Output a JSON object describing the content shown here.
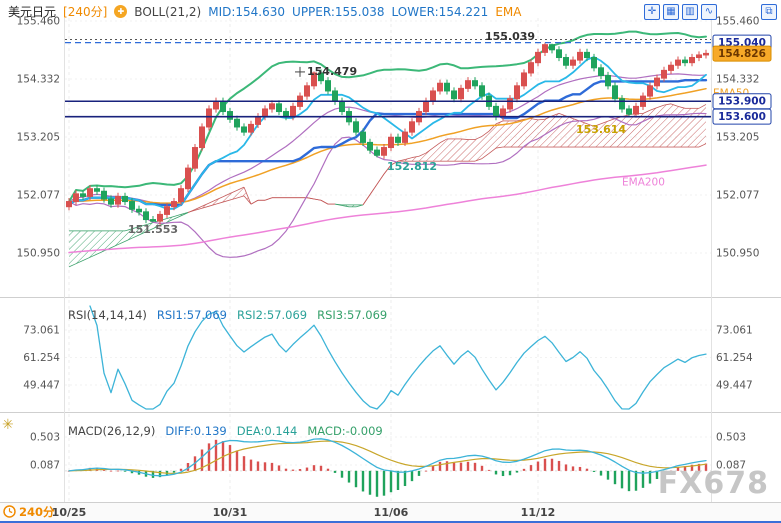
{
  "header": {
    "symbol": "美元日元",
    "timeframe": "[240分]",
    "indicator": "BOLL(21,2)",
    "mid": "MID:154.630",
    "upper": "UPPER:155.038",
    "lower": "LOWER:154.221",
    "ema_label": "EMA"
  },
  "icons": {
    "marker_glyph": "✚",
    "gear_glyph": "✳"
  },
  "toolbar": {
    "icons": [
      {
        "name": "crosshair-icon",
        "glyph": "✛"
      },
      {
        "name": "grid-view-icon",
        "glyph": "▦"
      },
      {
        "name": "candlestick-view-icon",
        "glyph": "▥"
      },
      {
        "name": "line-chart-icon",
        "glyph": "∿"
      }
    ],
    "corner": {
      "name": "expand-icon",
      "glyph": "⧉"
    }
  },
  "rsi": {
    "title": "RSI(14,14,14)",
    "rsi1": "RSI1:57.069",
    "rsi2": "RSI2:57.069",
    "rsi3": "RSI3:57.069"
  },
  "macd": {
    "title": "MACD(26,12,9)",
    "diff_label": "DIFF:0.139",
    "dea_label": "DEA:0.144",
    "macd_label": "MACD:-0.009"
  },
  "footer": {
    "timeframe": "240分"
  },
  "watermark": "FX678",
  "colors": {
    "up": "#d9504f",
    "down": "#1fa35c",
    "boll_upper": "#3cb878",
    "boll_mid": "#b06fc0",
    "boll_lower": "#b06fc0",
    "ema50": "#f0a125",
    "ema200": "#ee82d9",
    "kijun": "#2e6bd8",
    "tenkan": "#29b8e8",
    "cloud_red": "#c45a5a",
    "cloud_green": "#3aa06a",
    "rsi": "#3db4d8",
    "macd_diff": "#3db4d8",
    "macd_dea": "#c8a62a",
    "navy": "#18227c",
    "axis_text": "#555555"
  },
  "chart_data": [
    {
      "type": "candlestick",
      "panel": "price",
      "symbol": "美元日元",
      "timeframe": "240分",
      "ylim": [
        150.4,
        155.6
      ],
      "y_ticks": [
        155.46,
        154.332,
        153.205,
        152.077,
        150.95
      ],
      "x_ticks": [
        {
          "bar": 0,
          "label": "10/25"
        },
        {
          "bar": 23,
          "label": "10/31"
        },
        {
          "bar": 46,
          "label": "11/06"
        },
        {
          "bar": 67,
          "label": "11/12"
        }
      ],
      "candles": [
        [
          151.85,
          152.02,
          151.78,
          151.95
        ],
        [
          151.95,
          152.17,
          151.88,
          152.1
        ],
        [
          152.1,
          152.17,
          151.98,
          152.05
        ],
        [
          152.05,
          152.27,
          151.98,
          152.2
        ],
        [
          152.2,
          152.27,
          152.08,
          152.15
        ],
        [
          152.15,
          152.22,
          151.93,
          152.0
        ],
        [
          152.0,
          152.07,
          151.83,
          151.9
        ],
        [
          151.9,
          152.12,
          151.83,
          152.05
        ],
        [
          152.05,
          152.12,
          151.88,
          151.95
        ],
        [
          151.95,
          152.02,
          151.73,
          151.8
        ],
        [
          151.8,
          151.87,
          151.68,
          151.75
        ],
        [
          151.75,
          151.82,
          151.53,
          151.6
        ],
        [
          151.6,
          151.67,
          151.55,
          151.57
        ],
        [
          151.57,
          151.77,
          151.5,
          151.7
        ],
        [
          151.7,
          151.92,
          151.63,
          151.85
        ],
        [
          151.85,
          152.02,
          151.78,
          151.95
        ],
        [
          151.95,
          152.27,
          151.88,
          152.2
        ],
        [
          152.2,
          152.67,
          152.13,
          152.6
        ],
        [
          152.6,
          153.07,
          152.53,
          153.0
        ],
        [
          153.0,
          153.47,
          152.93,
          153.4
        ],
        [
          153.4,
          153.82,
          153.33,
          153.75
        ],
        [
          153.75,
          153.97,
          153.68,
          153.9
        ],
        [
          153.9,
          153.97,
          153.63,
          153.7
        ],
        [
          153.7,
          153.77,
          153.48,
          153.55
        ],
        [
          153.55,
          153.62,
          153.33,
          153.4
        ],
        [
          153.4,
          153.47,
          153.23,
          153.3
        ],
        [
          153.3,
          153.52,
          153.23,
          153.45
        ],
        [
          153.45,
          153.67,
          153.38,
          153.6
        ],
        [
          153.6,
          153.82,
          153.53,
          153.75
        ],
        [
          153.75,
          153.92,
          153.68,
          153.85
        ],
        [
          153.85,
          153.92,
          153.63,
          153.7
        ],
        [
          153.7,
          153.77,
          153.53,
          153.6
        ],
        [
          153.6,
          153.87,
          153.53,
          153.8
        ],
        [
          153.8,
          154.07,
          153.73,
          154.0
        ],
        [
          154.0,
          154.27,
          153.93,
          154.2
        ],
        [
          154.2,
          154.48,
          154.13,
          154.45
        ],
        [
          154.45,
          154.52,
          154.23,
          154.3
        ],
        [
          154.3,
          154.37,
          154.03,
          154.1
        ],
        [
          154.1,
          154.17,
          153.83,
          153.9
        ],
        [
          153.9,
          153.97,
          153.63,
          153.7
        ],
        [
          153.7,
          153.77,
          153.43,
          153.5
        ],
        [
          153.5,
          153.57,
          153.23,
          153.3
        ],
        [
          153.3,
          153.37,
          153.03,
          153.1
        ],
        [
          153.1,
          153.17,
          152.88,
          152.95
        ],
        [
          152.95,
          153.02,
          152.81,
          152.85
        ],
        [
          152.85,
          153.07,
          152.78,
          153.0
        ],
        [
          153.0,
          153.27,
          152.93,
          153.2
        ],
        [
          153.2,
          153.27,
          153.03,
          153.1
        ],
        [
          153.1,
          153.37,
          153.03,
          153.3
        ],
        [
          153.3,
          153.57,
          153.23,
          153.5
        ],
        [
          153.5,
          153.77,
          153.43,
          153.7
        ],
        [
          153.7,
          153.97,
          153.63,
          153.9
        ],
        [
          153.9,
          154.17,
          153.83,
          154.1
        ],
        [
          154.1,
          154.32,
          154.03,
          154.25
        ],
        [
          154.25,
          154.32,
          154.03,
          154.1
        ],
        [
          154.1,
          154.17,
          153.88,
          153.95
        ],
        [
          153.95,
          154.22,
          153.88,
          154.15
        ],
        [
          154.15,
          154.37,
          154.08,
          154.3
        ],
        [
          154.3,
          154.37,
          154.13,
          154.2
        ],
        [
          154.2,
          154.27,
          153.93,
          154.0
        ],
        [
          154.0,
          154.07,
          153.73,
          153.8
        ],
        [
          153.8,
          153.87,
          153.53,
          153.6
        ],
        [
          153.6,
          153.82,
          153.53,
          153.75
        ],
        [
          153.75,
          154.02,
          153.68,
          153.95
        ],
        [
          153.95,
          154.27,
          153.88,
          154.2
        ],
        [
          154.2,
          154.52,
          154.13,
          154.45
        ],
        [
          154.45,
          154.72,
          154.38,
          154.65
        ],
        [
          154.65,
          154.92,
          154.58,
          154.85
        ],
        [
          154.85,
          155.04,
          154.78,
          155.0
        ],
        [
          155.0,
          155.02,
          154.83,
          154.9
        ],
        [
          154.9,
          154.97,
          154.68,
          154.75
        ],
        [
          154.75,
          154.82,
          154.53,
          154.6
        ],
        [
          154.6,
          154.77,
          154.53,
          154.7
        ],
        [
          154.7,
          154.92,
          154.63,
          154.85
        ],
        [
          154.85,
          154.92,
          154.68,
          154.75
        ],
        [
          154.75,
          154.82,
          154.48,
          154.55
        ],
        [
          154.55,
          154.62,
          154.33,
          154.4
        ],
        [
          154.4,
          154.47,
          154.13,
          154.2
        ],
        [
          154.2,
          154.27,
          153.88,
          153.95
        ],
        [
          153.95,
          154.02,
          153.68,
          153.75
        ],
        [
          153.75,
          153.82,
          153.61,
          153.65
        ],
        [
          153.65,
          153.87,
          153.58,
          153.8
        ],
        [
          153.8,
          154.07,
          153.73,
          154.0
        ],
        [
          154.0,
          154.27,
          153.93,
          154.2
        ],
        [
          154.2,
          154.42,
          154.13,
          154.35
        ],
        [
          154.35,
          154.57,
          154.28,
          154.5
        ],
        [
          154.5,
          154.67,
          154.43,
          154.6
        ],
        [
          154.6,
          154.77,
          154.53,
          154.7
        ],
        [
          154.7,
          154.77,
          154.58,
          154.65
        ],
        [
          154.65,
          154.82,
          154.58,
          154.75
        ],
        [
          154.75,
          154.87,
          154.68,
          154.8
        ],
        [
          154.8,
          154.9,
          154.73,
          154.83
        ]
      ],
      "hlines": [
        {
          "price": 155.1,
          "style": "dotted",
          "color": "#555555",
          "width": 1
        },
        {
          "price": 155.04,
          "style": "dashed",
          "color": "#2e6bd8",
          "width": 1.2
        },
        {
          "price": 153.9,
          "style": "solid",
          "color": "#18227c",
          "width": 1.6
        },
        {
          "price": 153.6,
          "style": "solid",
          "color": "#18227c",
          "width": 1.6
        }
      ],
      "badges": [
        {
          "text": "155.040",
          "price": 155.04,
          "style": "blue"
        },
        {
          "text": "154.826",
          "price": 154.826,
          "style": "orange"
        },
        {
          "text": "153.900",
          "price": 153.9,
          "style": "blue"
        },
        {
          "text": "153.600",
          "price": 153.6,
          "style": "blue"
        }
      ],
      "annotations": [
        {
          "text": "155.039",
          "bar": 63,
          "price": 155.15,
          "color": "#333333"
        },
        {
          "text": "154.479",
          "bar": 33,
          "price": 154.47,
          "color": "#333333",
          "marker": "cross"
        },
        {
          "text": "152.812",
          "bar": 49,
          "price": 152.62,
          "color": "#2aa198"
        },
        {
          "text": "151.553",
          "bar": 12,
          "price": 151.4,
          "color": "#666666"
        },
        {
          "text": "153.614",
          "bar": 76,
          "price": 153.34,
          "color": "#c8a200"
        }
      ],
      "line_labels": [
        {
          "text": "EMA50",
          "bar": 92,
          "price": 154.05,
          "color": "#f0a125"
        },
        {
          "text": "EMA200",
          "bar": 79,
          "price": 152.32,
          "color": "#ee82d9"
        }
      ],
      "overlays": {
        "boll": {
          "period": 21,
          "dev": 2
        },
        "ema": [
          50,
          200
        ],
        "ichimoku": [
          9,
          26,
          52
        ]
      }
    },
    {
      "type": "line",
      "panel": "rsi",
      "y_ticks": [
        73.061,
        61.254,
        49.447
      ],
      "periods": [
        14,
        14,
        14
      ],
      "values": [
        57.069,
        57.069,
        57.069
      ]
    },
    {
      "type": "macd",
      "panel": "macd",
      "y_ticks": [
        0.503,
        0.087
      ],
      "params": [
        26,
        12,
        9
      ],
      "diff": 0.139,
      "dea": 0.144,
      "hist": -0.009
    }
  ]
}
